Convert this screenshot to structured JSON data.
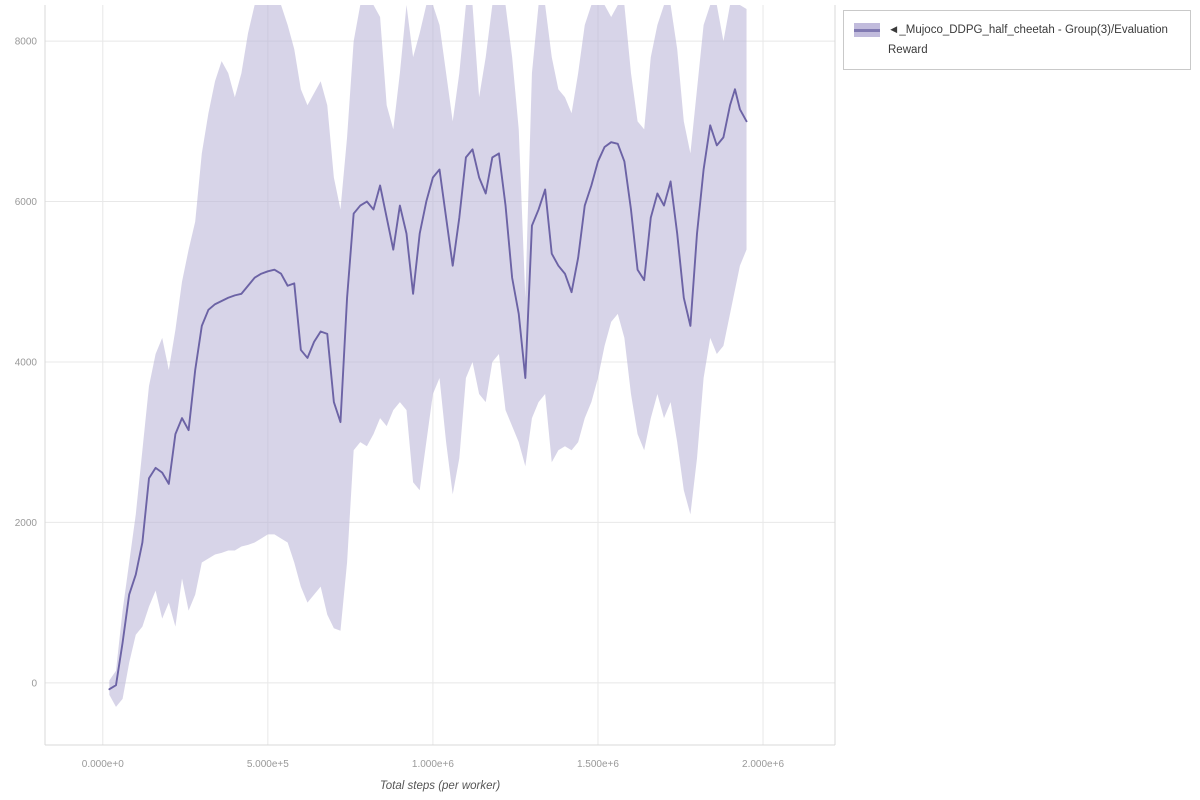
{
  "legend": {
    "label": "◄_Mujoco_DDPG_half_cheetah - Group(3)/Evaluation Reward"
  },
  "colors": {
    "band": "#b7b0d6",
    "line": "#6c63a5",
    "grid": "#e8e8e8",
    "axis_border": "#d8d8d8",
    "tick_text": "#999999",
    "axis_title_text": "#555555"
  },
  "chart_data": {
    "type": "line",
    "title": "",
    "xlabel": "Total steps (per worker)",
    "ylabel": "",
    "grid": true,
    "legend_position": "top-right-outside",
    "xlim": [
      -175000,
      2218000
    ],
    "ylim": [
      -775,
      8450
    ],
    "x_ticks": {
      "positions": [
        0,
        500000,
        1000000,
        1500000,
        2000000
      ],
      "labels": [
        "0.000e+0",
        "5.000e+5",
        "1.000e+6",
        "1.500e+6",
        "2.000e+6"
      ]
    },
    "y_ticks": {
      "positions": [
        0,
        2000,
        4000,
        6000,
        8000
      ],
      "labels": [
        "0",
        "2000",
        "4000",
        "6000",
        "8000"
      ]
    },
    "series": [
      {
        "name": "◄_Mujoco_DDPG_half_cheetah - Group(3)/Evaluation Reward",
        "line_color": "#6c63a5",
        "band_color": "#b7b0d6",
        "band_opacity": 0.55,
        "x": [
          20000,
          40000,
          60000,
          80000,
          100000,
          120000,
          140000,
          160000,
          180000,
          200000,
          220000,
          240000,
          260000,
          280000,
          300000,
          320000,
          340000,
          360000,
          380000,
          400000,
          420000,
          440000,
          460000,
          480000,
          500000,
          520000,
          540000,
          560000,
          580000,
          600000,
          620000,
          640000,
          660000,
          680000,
          700000,
          720000,
          740000,
          760000,
          780000,
          800000,
          820000,
          840000,
          860000,
          880000,
          900000,
          920000,
          940000,
          960000,
          980000,
          1000000,
          1020000,
          1040000,
          1060000,
          1080000,
          1100000,
          1120000,
          1140000,
          1160000,
          1180000,
          1200000,
          1220000,
          1240000,
          1260000,
          1280000,
          1300000,
          1320000,
          1340000,
          1360000,
          1380000,
          1400000,
          1420000,
          1440000,
          1460000,
          1480000,
          1500000,
          1520000,
          1540000,
          1560000,
          1580000,
          1600000,
          1620000,
          1640000,
          1660000,
          1680000,
          1700000,
          1720000,
          1740000,
          1760000,
          1780000,
          1800000,
          1820000,
          1840000,
          1860000,
          1880000,
          1900000,
          1915000,
          1930000,
          1950000
        ],
        "mean": [
          -80,
          -30,
          500,
          1100,
          1350,
          1750,
          2550,
          2680,
          2620,
          2480,
          3100,
          3300,
          3150,
          3900,
          4450,
          4650,
          4720,
          4760,
          4800,
          4830,
          4850,
          4950,
          5050,
          5100,
          5130,
          5150,
          5100,
          4950,
          4980,
          4150,
          4050,
          4250,
          4380,
          4350,
          3500,
          3250,
          4800,
          5850,
          5950,
          6000,
          5900,
          6200,
          5800,
          5400,
          5950,
          5600,
          4850,
          5600,
          6000,
          6300,
          6400,
          5800,
          5200,
          5800,
          6550,
          6650,
          6300,
          6100,
          6550,
          6600,
          5950,
          5050,
          4600,
          3800,
          5700,
          5900,
          6150,
          5350,
          5200,
          5100,
          4870,
          5300,
          5950,
          6200,
          6500,
          6680,
          6740,
          6720,
          6500,
          5900,
          5150,
          5020,
          5800,
          6100,
          5950,
          6250,
          5600,
          4800,
          4450,
          5600,
          6400,
          6950,
          6700,
          6800,
          7200,
          7400,
          7150,
          7000
        ],
        "lower": [
          -150,
          -300,
          -200,
          250,
          600,
          700,
          950,
          1150,
          800,
          1000,
          700,
          1300,
          900,
          1100,
          1500,
          1550,
          1600,
          1620,
          1650,
          1650,
          1700,
          1720,
          1750,
          1800,
          1850,
          1850,
          1800,
          1750,
          1500,
          1200,
          1000,
          1100,
          1200,
          850,
          680,
          650,
          1500,
          2900,
          3000,
          2950,
          3100,
          3300,
          3200,
          3400,
          3500,
          3400,
          2500,
          2400,
          3000,
          3600,
          3800,
          3000,
          2350,
          2800,
          3800,
          4000,
          3600,
          3500,
          4000,
          4100,
          3400,
          3200,
          3000,
          2700,
          3300,
          3500,
          3600,
          2750,
          2900,
          2950,
          2900,
          3000,
          3300,
          3500,
          3800,
          4200,
          4500,
          4600,
          4300,
          3600,
          3100,
          2900,
          3300,
          3600,
          3300,
          3500,
          3000,
          2400,
          2100,
          2800,
          3800,
          4300,
          4100,
          4200,
          4600,
          4900,
          5200,
          5400
        ],
        "upper": [
          30,
          150,
          900,
          1500,
          2100,
          2900,
          3700,
          4100,
          4300,
          3900,
          4400,
          5000,
          5400,
          5750,
          6600,
          7100,
          7500,
          7750,
          7600,
          7300,
          7600,
          8100,
          8450,
          8450,
          8450,
          8450,
          8450,
          8200,
          7900,
          7400,
          7200,
          7350,
          7500,
          7200,
          6300,
          5900,
          6800,
          8000,
          8450,
          8450,
          8450,
          8300,
          7200,
          6900,
          7600,
          8450,
          7800,
          8100,
          8450,
          8450,
          8200,
          7600,
          7000,
          7600,
          8450,
          8450,
          7300,
          7800,
          8450,
          8450,
          8450,
          7800,
          6900,
          4800,
          7600,
          8450,
          8450,
          7800,
          7400,
          7300,
          7100,
          7600,
          8200,
          8450,
          8450,
          8450,
          8300,
          8450,
          8450,
          7600,
          7000,
          6900,
          7800,
          8200,
          8450,
          8450,
          7900,
          7000,
          6600,
          7400,
          8200,
          8450,
          8450,
          8000,
          8450,
          8450,
          8450,
          8400
        ]
      }
    ]
  }
}
